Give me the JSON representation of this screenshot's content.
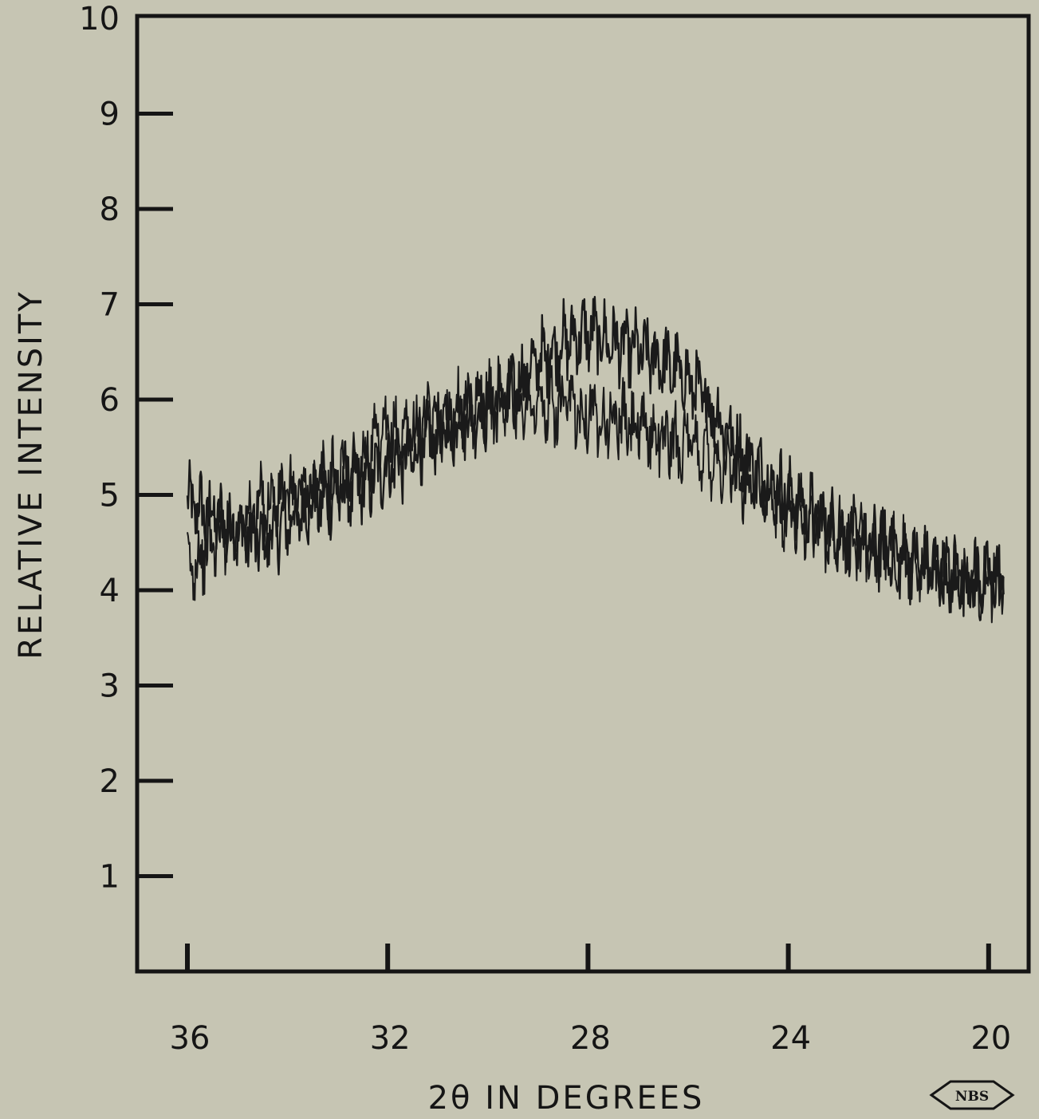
{
  "chart_data": {
    "type": "line",
    "title": "",
    "xlabel": "2θ IN DEGREES",
    "ylabel": "RELATIVE  INTENSITY",
    "xlim": [
      36.0,
      19.6
    ],
    "x_reversed": true,
    "ylim": [
      0,
      10
    ],
    "x_ticks": [
      36,
      32,
      28,
      24,
      20
    ],
    "x_tick_labels": [
      "36",
      "32",
      "28",
      "24",
      "20"
    ],
    "y_ticks": [
      1,
      2,
      3,
      4,
      5,
      6,
      7,
      8,
      9,
      10
    ],
    "y_tick_labels": [
      "1",
      "2",
      "3",
      "4",
      "5",
      "6",
      "7",
      "8",
      "9",
      "10"
    ],
    "grid": false,
    "legend": "none",
    "line_color": "#1a1a1a",
    "series": [
      {
        "x": [
          36.0,
          35.5,
          35.0,
          34.5,
          34.0,
          33.5,
          33.0,
          32.5,
          32.0,
          31.5,
          31.0,
          30.5,
          30.0,
          29.5,
          29.0,
          28.5,
          28.0,
          27.5,
          27.0,
          26.5,
          26.0,
          25.5,
          25.0,
          24.5,
          24.0,
          23.5,
          23.0,
          22.5,
          22.0,
          21.5,
          21.0,
          20.5,
          20.0,
          19.7
        ],
        "y": [
          4.9,
          4.8,
          4.6,
          4.5,
          4.7,
          4.9,
          5.0,
          5.1,
          5.3,
          5.4,
          5.6,
          5.8,
          5.9,
          6.1,
          6.4,
          6.6,
          6.7,
          6.6,
          6.5,
          6.4,
          6.2,
          5.9,
          5.5,
          5.2,
          5.0,
          4.8,
          4.6,
          4.5,
          4.4,
          4.3,
          4.2,
          4.1,
          4.1,
          4.1
        ]
      },
      {
        "x": [
          36.0,
          35.5,
          35.0,
          34.5,
          34.0,
          33.5,
          33.0,
          32.5,
          32.0,
          31.5,
          31.0,
          30.5,
          30.0,
          29.5,
          29.0,
          28.5,
          28.0,
          27.5,
          27.0,
          26.5,
          26.0,
          25.5,
          25.0,
          24.5,
          24.0,
          23.5,
          23.0,
          22.5,
          22.0,
          21.5,
          21.0,
          20.5,
          20.0,
          19.7
        ],
        "y": [
          4.2,
          4.5,
          4.7,
          4.9,
          5.0,
          5.1,
          5.2,
          5.4,
          5.6,
          5.7,
          5.8,
          5.9,
          6.0,
          6.0,
          5.9,
          5.9,
          5.9,
          5.8,
          5.7,
          5.6,
          5.5,
          5.4,
          5.2,
          5.0,
          4.8,
          4.7,
          4.6,
          4.5,
          4.4,
          4.3,
          4.2,
          4.1,
          4.1,
          4.1
        ]
      }
    ]
  },
  "logo": {
    "text": "NBS"
  }
}
